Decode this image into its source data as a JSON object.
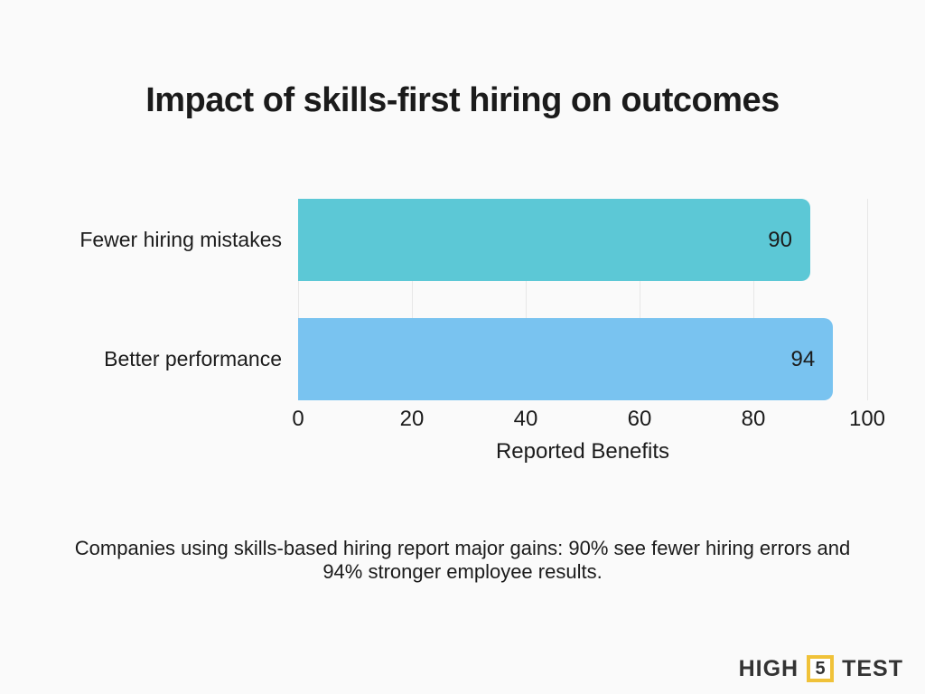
{
  "title": "Impact of skills-first hiring on outcomes",
  "chart_data": {
    "type": "bar",
    "orientation": "horizontal",
    "categories": [
      "Fewer hiring mistakes",
      "Better performance"
    ],
    "values": [
      90,
      94
    ],
    "bar_colors": [
      "#5cc8d6",
      "#79c3f0"
    ],
    "title": "Impact of skills-first hiring on outcomes",
    "xlabel": "Reported Benefits",
    "ylabel": "",
    "xlim": [
      0,
      100
    ],
    "xticks": [
      0,
      20,
      40,
      60,
      80,
      100
    ],
    "grid": true,
    "gridline_color": "#e7e7e7",
    "value_labels_inside_bars": true,
    "legend": "none"
  },
  "caption": "Companies using skills-based hiring report major gains: 90% see fewer hiring errors and 94% stronger employee results.",
  "logo": {
    "word_left": "HIGH",
    "badge_number": "5",
    "word_right": "TEST",
    "badge_border_color": "#f0c239",
    "text_color": "#333333"
  },
  "colors": {
    "background": "#fafafa",
    "text": "#1b1b1b"
  }
}
